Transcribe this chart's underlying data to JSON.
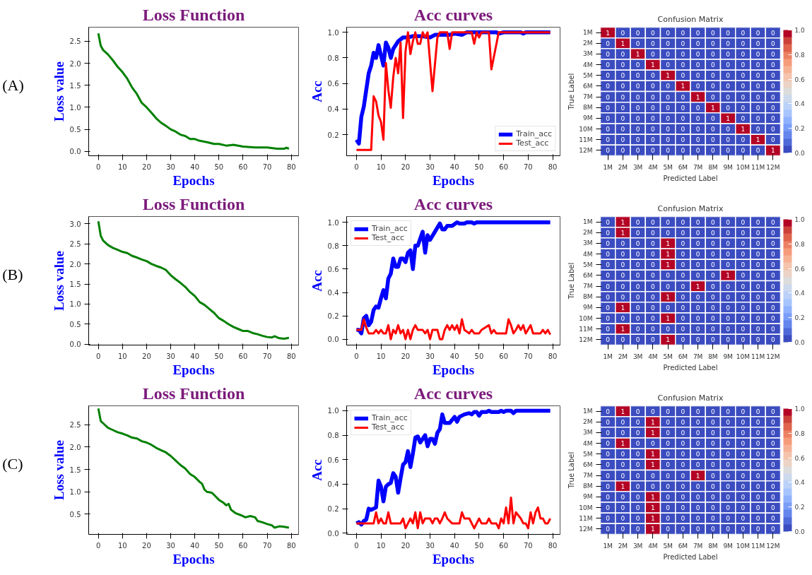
{
  "chart_data": [
    {
      "type": "line",
      "title": "Loss Function",
      "xlabel": "Epochs",
      "ylabel": "Loss value",
      "annotations": [
        "(A)"
      ],
      "xlim": [
        -4,
        83
      ],
      "ylim": [
        -0.1,
        2.82
      ],
      "xticks": [
        0,
        10,
        20,
        30,
        40,
        50,
        60,
        70,
        80
      ],
      "yticks": [
        {
          "value": 0,
          "label": "0.0"
        },
        {
          "value": 0.5,
          "label": "0.5"
        },
        {
          "value": 1,
          "label": "1.0"
        },
        {
          "value": 1.5,
          "label": "1.5"
        },
        {
          "value": 2,
          "label": "2.0"
        },
        {
          "value": 2.5,
          "label": "2.5"
        }
      ],
      "grid": false,
      "legend": false,
      "series": [
        {
          "color": "#008000",
          "x": [
            0,
            1,
            2,
            4,
            6,
            8,
            10,
            12,
            14,
            16,
            18,
            20,
            22,
            24,
            26,
            28,
            30,
            32,
            34,
            36,
            38,
            40,
            42,
            45,
            48,
            50,
            53,
            56,
            60,
            65,
            70,
            74,
            77,
            78,
            79
          ],
          "values": [
            2.68,
            2.4,
            2.3,
            2.2,
            2.07,
            1.92,
            1.8,
            1.65,
            1.45,
            1.3,
            1.1,
            1.0,
            0.88,
            0.75,
            0.65,
            0.58,
            0.5,
            0.45,
            0.38,
            0.35,
            0.28,
            0.28,
            0.24,
            0.21,
            0.17,
            0.17,
            0.13,
            0.15,
            0.11,
            0.09,
            0.09,
            0.06,
            0.06,
            0.08,
            0.06
          ]
        }
      ]
    },
    {
      "type": "line",
      "title": "Acc curves",
      "xlabel": "Epochs",
      "ylabel": "Acc",
      "xlim": [
        -4,
        83
      ],
      "ylim": [
        0.035,
        1.04
      ],
      "xticks": [
        0,
        10,
        20,
        30,
        40,
        50,
        60,
        70,
        80
      ],
      "yticks": [
        {
          "value": 0.2,
          "label": "0.2"
        },
        {
          "value": 0.4,
          "label": "0.4"
        },
        {
          "value": 0.6,
          "label": "0.6"
        },
        {
          "value": 0.8,
          "label": "0.8"
        },
        {
          "value": 1,
          "label": "1.0"
        }
      ],
      "grid": false,
      "legend": "bottom right",
      "series": [
        {
          "name": "Train_acc",
          "color": "#0000ff",
          "x": [
            0,
            1,
            2,
            3,
            4,
            5,
            6,
            7,
            8,
            9,
            10,
            11,
            12,
            13,
            14,
            15,
            17,
            19,
            21,
            23,
            27,
            30,
            32,
            35,
            38,
            40,
            43,
            45,
            57,
            58,
            60,
            67,
            68,
            69,
            79
          ],
          "values": [
            0.16,
            0.13,
            0.34,
            0.42,
            0.55,
            0.68,
            0.74,
            0.84,
            0.8,
            0.9,
            0.82,
            0.74,
            0.92,
            0.88,
            0.8,
            0.87,
            0.93,
            0.96,
            0.96,
            0.97,
            0.97,
            0.96,
            0.98,
            0.98,
            0.98,
            0.99,
            0.98,
            1.0,
            1.0,
            0.99,
            1.0,
            1.0,
            0.99,
            1.0,
            1.0
          ]
        },
        {
          "name": "Test_acc",
          "color": "#ff0000",
          "x": [
            0,
            6,
            7,
            8,
            9,
            10,
            11,
            12,
            13,
            14,
            15,
            16,
            17,
            18,
            19,
            20,
            21,
            22,
            23,
            24,
            25,
            26,
            27,
            28,
            29,
            31,
            33,
            34,
            37,
            38,
            39,
            47,
            48,
            49,
            50,
            51,
            54,
            55,
            58,
            79
          ],
          "values": [
            0.08,
            0.08,
            0.5,
            0.46,
            0.35,
            0.3,
            0.16,
            0.76,
            0.55,
            0.41,
            0.65,
            0.8,
            0.68,
            0.92,
            0.33,
            0.85,
            1.0,
            0.83,
            0.93,
            1.0,
            0.91,
            0.91,
            1.0,
            0.96,
            1.0,
            0.54,
            0.96,
            1.0,
            1.0,
            0.87,
            1.0,
            1.0,
            0.91,
            1.0,
            0.96,
            1.0,
            1.0,
            0.71,
            1.0,
            1.0
          ]
        }
      ]
    },
    {
      "type": "heatmap",
      "title": "Confusion Matrix",
      "xlabel": "Predicted Label",
      "ylabel": "True Label",
      "data_labels": true,
      "categories": [
        "1M",
        "2M",
        "3M",
        "4M",
        "5M",
        "6M",
        "7M",
        "8M",
        "9M",
        "10M",
        "11M",
        "12M"
      ],
      "y_categories": [
        "1M",
        "2M",
        "3M",
        "4M",
        "5M",
        "6M",
        "7M",
        "8M",
        "9M",
        "10M",
        "11M",
        "12M"
      ],
      "clim": [
        0,
        1
      ],
      "cticks": [
        {
          "value": 0,
          "label": "0.0"
        },
        {
          "value": 0.2,
          "label": "0.2"
        },
        {
          "value": 0.4,
          "label": "0.4"
        },
        {
          "value": 0.6,
          "label": "0.6"
        },
        {
          "value": 0.8,
          "label": "0.8"
        },
        {
          "value": 1,
          "label": "1.0"
        }
      ],
      "cells": [
        [
          1,
          0,
          0,
          0,
          0,
          0,
          0,
          0,
          0,
          0,
          0,
          0
        ],
        [
          0,
          1,
          0,
          0,
          0,
          0,
          0,
          0,
          0,
          0,
          0,
          0
        ],
        [
          0,
          0,
          1,
          0,
          0,
          0,
          0,
          0,
          0,
          0,
          0,
          0
        ],
        [
          0,
          0,
          0,
          1,
          0,
          0,
          0,
          0,
          0,
          0,
          0,
          0
        ],
        [
          0,
          0,
          0,
          0,
          1,
          0,
          0,
          0,
          0,
          0,
          0,
          0
        ],
        [
          0,
          0,
          0,
          0,
          0,
          1,
          0,
          0,
          0,
          0,
          0,
          0
        ],
        [
          0,
          0,
          0,
          0,
          0,
          0,
          1,
          0,
          0,
          0,
          0,
          0
        ],
        [
          0,
          0,
          0,
          0,
          0,
          0,
          0,
          1,
          0,
          0,
          0,
          0
        ],
        [
          0,
          0,
          0,
          0,
          0,
          0,
          0,
          0,
          1,
          0,
          0,
          0
        ],
        [
          0,
          0,
          0,
          0,
          0,
          0,
          0,
          0,
          0,
          1,
          0,
          0
        ],
        [
          0,
          0,
          0,
          0,
          0,
          0,
          0,
          0,
          0,
          0,
          1,
          0
        ],
        [
          0,
          0,
          0,
          0,
          0,
          0,
          0,
          0,
          0,
          0,
          0,
          1
        ]
      ]
    },
    {
      "type": "line",
      "title": "Loss Function",
      "xlabel": "Epochs",
      "ylabel": "Loss value",
      "annotations": [
        "(B)"
      ],
      "xlim": [
        -4,
        83
      ],
      "ylim": [
        -0.02,
        3.18
      ],
      "xticks": [
        0,
        10,
        20,
        30,
        40,
        50,
        60,
        70,
        80
      ],
      "yticks": [
        {
          "value": 0,
          "label": "0.0"
        },
        {
          "value": 0.5,
          "label": "0.5"
        },
        {
          "value": 1,
          "label": "1.0"
        },
        {
          "value": 1.5,
          "label": "1.5"
        },
        {
          "value": 2,
          "label": "2.0"
        },
        {
          "value": 2.5,
          "label": "2.5"
        },
        {
          "value": 3,
          "label": "3.0"
        }
      ],
      "grid": false,
      "legend": false,
      "series": [
        {
          "color": "#008000",
          "x": [
            0,
            1,
            2,
            4,
            6,
            8,
            10,
            12,
            14,
            16,
            18,
            20,
            22,
            24,
            26,
            28,
            30,
            32,
            34,
            36,
            38,
            40,
            42,
            44,
            46,
            48,
            50,
            52,
            54,
            56,
            58,
            60,
            62,
            64,
            66,
            68,
            70,
            72,
            73,
            75,
            77,
            79
          ],
          "values": [
            3.06,
            2.7,
            2.58,
            2.47,
            2.4,
            2.35,
            2.3,
            2.27,
            2.2,
            2.16,
            2.11,
            2.07,
            2.0,
            1.95,
            1.91,
            1.85,
            1.72,
            1.62,
            1.53,
            1.43,
            1.3,
            1.2,
            1.05,
            0.98,
            0.88,
            0.78,
            0.65,
            0.58,
            0.5,
            0.43,
            0.38,
            0.33,
            0.33,
            0.28,
            0.25,
            0.21,
            0.18,
            0.17,
            0.2,
            0.15,
            0.14,
            0.16
          ]
        }
      ]
    },
    {
      "type": "line",
      "title": "Acc curves",
      "xlabel": "Epochs",
      "ylabel": "Acc",
      "xlim": [
        -4,
        83
      ],
      "ylim": [
        -0.05,
        1.05
      ],
      "xticks": [
        0,
        10,
        20,
        30,
        40,
        50,
        60,
        70,
        80
      ],
      "yticks": [
        {
          "value": 0,
          "label": "0.0"
        },
        {
          "value": 0.2,
          "label": "0.2"
        },
        {
          "value": 0.4,
          "label": "0.4"
        },
        {
          "value": 0.6,
          "label": "0.6"
        },
        {
          "value": 0.8,
          "label": "0.8"
        },
        {
          "value": 1,
          "label": "1.0"
        }
      ],
      "grid": false,
      "legend": "top left",
      "series": [
        {
          "name": "Train_acc",
          "color": "#0000ff",
          "x": [
            0,
            1,
            2,
            3,
            4,
            5,
            6,
            7,
            8,
            9,
            10,
            11,
            12,
            13,
            14,
            15,
            16,
            17,
            18,
            19,
            20,
            21,
            22,
            23,
            24,
            25,
            27,
            28,
            29,
            30,
            32,
            34,
            35,
            36,
            37,
            39,
            41,
            42,
            44,
            45,
            47,
            48,
            49,
            79
          ],
          "values": [
            0.08,
            0.08,
            0.05,
            0.18,
            0.2,
            0.12,
            0.15,
            0.25,
            0.28,
            0.27,
            0.35,
            0.42,
            0.35,
            0.52,
            0.56,
            0.69,
            0.62,
            0.62,
            0.69,
            0.69,
            0.66,
            0.74,
            0.76,
            0.6,
            0.8,
            0.8,
            0.92,
            0.74,
            0.89,
            0.85,
            0.92,
            0.99,
            0.94,
            0.94,
            0.97,
            0.97,
            1.0,
            0.99,
            0.99,
            1.0,
            1.0,
            0.99,
            1.0,
            1.0
          ]
        },
        {
          "name": "Test_acc",
          "color": "#ff0000",
          "x": [
            0,
            2,
            3,
            4,
            5,
            7,
            8,
            9,
            10,
            11,
            12,
            13,
            14,
            15,
            16,
            17,
            18,
            19,
            20,
            21,
            22,
            23,
            24,
            25,
            27,
            28,
            29,
            30,
            31,
            33,
            34,
            35,
            36,
            37,
            38,
            39,
            40,
            41,
            42,
            43,
            44,
            46,
            47,
            48,
            50,
            51,
            54,
            55,
            56,
            57,
            61,
            62,
            63,
            64,
            65,
            66,
            67,
            68,
            69,
            71,
            72,
            75,
            76,
            77,
            78,
            79
          ],
          "values": [
            0.08,
            0.08,
            0.17,
            0.1,
            0.05,
            0.05,
            0.08,
            0.05,
            0.08,
            0.05,
            0.05,
            0.12,
            0.0,
            0.08,
            0.05,
            0.12,
            0.05,
            0.08,
            0.0,
            0.08,
            0.0,
            0.08,
            0.12,
            0.08,
            0.08,
            0.05,
            0.08,
            0.0,
            0.08,
            0.08,
            0.0,
            0.0,
            0.08,
            0.12,
            0.08,
            0.12,
            0.08,
            0.12,
            0.05,
            0.17,
            0.08,
            0.05,
            0.08,
            0.05,
            0.05,
            0.08,
            0.12,
            0.05,
            0.08,
            0.05,
            0.05,
            0.17,
            0.12,
            0.05,
            0.08,
            0.12,
            0.08,
            0.12,
            0.05,
            0.12,
            0.05,
            0.05,
            0.08,
            0.05,
            0.08,
            0.04
          ]
        }
      ]
    },
    {
      "type": "heatmap",
      "title": "Confusion Matrix",
      "xlabel": "Predicted Label",
      "ylabel": "True Label",
      "data_labels": true,
      "categories": [
        "1M",
        "2M",
        "3M",
        "4M",
        "5M",
        "6M",
        "7M",
        "8M",
        "9M",
        "10M",
        "11M",
        "12M"
      ],
      "y_categories": [
        "1M",
        "2M",
        "3M",
        "4M",
        "5M",
        "6M",
        "7M",
        "8M",
        "9M",
        "10M",
        "11M",
        "12M"
      ],
      "clim": [
        0,
        1
      ],
      "cticks": [
        {
          "value": 0,
          "label": "0.0"
        },
        {
          "value": 0.2,
          "label": "0.2"
        },
        {
          "value": 0.4,
          "label": "0.4"
        },
        {
          "value": 0.6,
          "label": "0.6"
        },
        {
          "value": 0.8,
          "label": "0.8"
        },
        {
          "value": 1,
          "label": "1.0"
        }
      ],
      "cells": [
        [
          0,
          1,
          0,
          0,
          0,
          0,
          0,
          0,
          0,
          0,
          0,
          0
        ],
        [
          0,
          1,
          0,
          0,
          0,
          0,
          0,
          0,
          0,
          0,
          0,
          0
        ],
        [
          0,
          0,
          0,
          0,
          1,
          0,
          0,
          0,
          0,
          0,
          0,
          0
        ],
        [
          0,
          0,
          0,
          0,
          1,
          0,
          0,
          0,
          0,
          0,
          0,
          0
        ],
        [
          0,
          0,
          0,
          0,
          1,
          0,
          0,
          0,
          0,
          0,
          0,
          0
        ],
        [
          0,
          0,
          0,
          0,
          0,
          0,
          0,
          0,
          1,
          0,
          0,
          0
        ],
        [
          0,
          0,
          0,
          0,
          0,
          0,
          1,
          0,
          0,
          0,
          0,
          0
        ],
        [
          0,
          0,
          0,
          0,
          1,
          0,
          0,
          0,
          0,
          0,
          0,
          0
        ],
        [
          0,
          1,
          0,
          0,
          0,
          0,
          0,
          0,
          0,
          0,
          0,
          0
        ],
        [
          0,
          0,
          0,
          0,
          1,
          0,
          0,
          0,
          0,
          0,
          0,
          0
        ],
        [
          0,
          1,
          0,
          0,
          0,
          0,
          0,
          0,
          0,
          0,
          0,
          0
        ],
        [
          0,
          0,
          0,
          0,
          1,
          0,
          0,
          0,
          0,
          0,
          0,
          0
        ]
      ]
    },
    {
      "type": "line",
      "title": "Loss Function",
      "xlabel": "Epochs",
      "ylabel": "Loss value",
      "annotations": [
        "(C)"
      ],
      "xlim": [
        -4,
        83
      ],
      "ylim": [
        0.05,
        2.92
      ],
      "xticks": [
        0,
        10,
        20,
        30,
        40,
        50,
        60,
        70,
        80
      ],
      "yticks": [
        {
          "value": 0.5,
          "label": "0.5"
        },
        {
          "value": 1,
          "label": "1.0"
        },
        {
          "value": 1.5,
          "label": "1.5"
        },
        {
          "value": 2,
          "label": "2.0"
        },
        {
          "value": 2.5,
          "label": "2.5"
        }
      ],
      "grid": false,
      "legend": false,
      "series": [
        {
          "color": "#008000",
          "x": [
            0,
            1,
            2,
            4,
            6,
            8,
            10,
            12,
            14,
            16,
            18,
            20,
            22,
            24,
            26,
            28,
            30,
            32,
            34,
            36,
            38,
            40,
            42,
            43,
            44,
            45,
            47,
            48,
            50,
            52,
            53,
            54,
            55,
            57,
            59,
            61,
            63,
            65,
            66,
            68,
            70,
            72,
            73,
            75,
            77,
            79
          ],
          "values": [
            2.86,
            2.58,
            2.53,
            2.43,
            2.38,
            2.33,
            2.3,
            2.26,
            2.21,
            2.19,
            2.13,
            2.1,
            2.05,
            1.98,
            1.93,
            1.88,
            1.8,
            1.7,
            1.6,
            1.52,
            1.4,
            1.33,
            1.22,
            1.18,
            1.05,
            1.0,
            0.98,
            0.93,
            0.82,
            0.75,
            0.7,
            0.73,
            0.6,
            0.52,
            0.48,
            0.43,
            0.46,
            0.43,
            0.35,
            0.32,
            0.28,
            0.25,
            0.2,
            0.23,
            0.22,
            0.2
          ]
        }
      ]
    },
    {
      "type": "line",
      "title": "Acc curves",
      "xlabel": "Epochs",
      "ylabel": "Acc",
      "xlim": [
        -4,
        83
      ],
      "ylim": [
        -0.01,
        1.04
      ],
      "xticks": [
        0,
        10,
        20,
        30,
        40,
        50,
        60,
        70,
        80
      ],
      "yticks": [
        {
          "value": 0,
          "label": "0.0"
        },
        {
          "value": 0.2,
          "label": "0.2"
        },
        {
          "value": 0.4,
          "label": "0.4"
        },
        {
          "value": 0.6,
          "label": "0.6"
        },
        {
          "value": 0.8,
          "label": "0.8"
        },
        {
          "value": 1,
          "label": "1.0"
        }
      ],
      "grid": false,
      "legend": "top left",
      "series": [
        {
          "name": "Train_acc",
          "color": "#0000ff",
          "x": [
            0,
            1,
            2,
            3,
            4,
            5,
            6,
            7,
            8,
            9,
            10,
            11,
            12,
            13,
            14,
            15,
            16,
            17,
            18,
            19,
            20,
            21,
            22,
            23,
            24,
            25,
            26,
            27,
            28,
            29,
            30,
            31,
            32,
            33,
            34,
            35,
            36,
            38,
            40,
            41,
            42,
            44,
            46,
            47,
            48,
            49,
            50,
            51,
            53,
            54,
            55,
            58,
            59,
            60,
            61,
            63,
            64,
            65,
            79
          ],
          "values": [
            0.08,
            0.09,
            0.07,
            0.1,
            0.11,
            0.2,
            0.19,
            0.2,
            0.21,
            0.43,
            0.38,
            0.26,
            0.38,
            0.4,
            0.41,
            0.49,
            0.46,
            0.33,
            0.45,
            0.56,
            0.58,
            0.67,
            0.54,
            0.65,
            0.78,
            0.79,
            0.74,
            0.77,
            0.8,
            0.71,
            0.77,
            0.77,
            0.73,
            0.82,
            0.85,
            0.97,
            0.9,
            0.9,
            0.95,
            0.91,
            0.95,
            0.97,
            0.98,
            0.97,
            0.99,
            0.99,
            0.96,
            0.99,
            0.99,
            1.0,
            0.99,
            0.99,
            1.0,
            0.99,
            1.0,
            1.0,
            0.98,
            1.0,
            1.0
          ]
        },
        {
          "name": "Test_acc",
          "color": "#ff0000",
          "x": [
            0,
            7,
            8,
            9,
            10,
            11,
            12,
            13,
            14,
            18,
            19,
            20,
            21,
            22,
            23,
            24,
            25,
            26,
            27,
            28,
            30,
            31,
            32,
            33,
            34,
            35,
            36,
            37,
            39,
            42,
            43,
            44,
            46,
            48,
            49,
            50,
            51,
            53,
            54,
            55,
            57,
            58,
            59,
            60,
            61,
            62,
            63,
            64,
            65,
            67,
            68,
            69,
            70,
            71,
            72,
            73,
            74,
            75,
            76,
            77,
            78,
            79
          ],
          "values": [
            0.08,
            0.08,
            0.17,
            0.08,
            0.12,
            0.08,
            0.08,
            0.17,
            0.08,
            0.08,
            0.12,
            0.04,
            0.08,
            0.12,
            0.08,
            0.17,
            0.04,
            0.17,
            0.08,
            0.12,
            0.12,
            0.08,
            0.12,
            0.12,
            0.08,
            0.12,
            0.17,
            0.12,
            0.08,
            0.08,
            0.17,
            0.12,
            0.12,
            0.04,
            0.08,
            0.12,
            0.08,
            0.08,
            0.12,
            0.08,
            0.08,
            0.04,
            0.12,
            0.08,
            0.21,
            0.08,
            0.29,
            0.08,
            0.17,
            0.12,
            0.08,
            0.08,
            0.04,
            0.17,
            0.08,
            0.17,
            0.21,
            0.12,
            0.12,
            0.08,
            0.08,
            0.12
          ]
        }
      ]
    },
    {
      "type": "heatmap",
      "title": "Confusion Matrix",
      "xlabel": "Predicted Label",
      "ylabel": "True Label",
      "data_labels": true,
      "categories": [
        "1M",
        "2M",
        "3M",
        "4M",
        "5M",
        "6M",
        "7M",
        "8M",
        "9M",
        "10M",
        "11M",
        "12M"
      ],
      "y_categories": [
        "1M",
        "2M",
        "3M",
        "4M",
        "5M",
        "6M",
        "7M",
        "8M",
        "9M",
        "10M",
        "11M",
        "12M"
      ],
      "clim": [
        0,
        1
      ],
      "cticks": [
        {
          "value": 0,
          "label": "0.0"
        },
        {
          "value": 0.2,
          "label": "0.2"
        },
        {
          "value": 0.4,
          "label": "0.4"
        },
        {
          "value": 0.6,
          "label": "0.6"
        },
        {
          "value": 0.8,
          "label": "0.8"
        },
        {
          "value": 1,
          "label": "1.0"
        }
      ],
      "cells": [
        [
          0,
          1,
          0,
          0,
          0,
          0,
          0,
          0,
          0,
          0,
          0,
          0
        ],
        [
          0,
          0,
          0,
          1,
          0,
          0,
          0,
          0,
          0,
          0,
          0,
          0
        ],
        [
          0,
          0,
          0,
          1,
          0,
          0,
          0,
          0,
          0,
          0,
          0,
          0
        ],
        [
          0,
          1,
          0,
          0,
          0,
          0,
          0,
          0,
          0,
          0,
          0,
          0
        ],
        [
          0,
          0,
          0,
          1,
          0,
          0,
          0,
          0,
          0,
          0,
          0,
          0
        ],
        [
          0,
          0,
          0,
          1,
          0,
          0,
          0,
          0,
          0,
          0,
          0,
          0
        ],
        [
          0,
          0,
          0,
          0,
          0,
          0,
          1,
          0,
          0,
          0,
          0,
          0
        ],
        [
          0,
          1,
          0,
          0,
          0,
          0,
          0,
          0,
          0,
          0,
          0,
          0
        ],
        [
          0,
          0,
          0,
          1,
          0,
          0,
          0,
          0,
          0,
          0,
          0,
          0
        ],
        [
          0,
          0,
          0,
          1,
          0,
          0,
          0,
          0,
          0,
          0,
          0,
          0
        ],
        [
          0,
          0,
          0,
          1,
          0,
          0,
          0,
          0,
          0,
          0,
          0,
          0
        ],
        [
          0,
          0,
          0,
          1,
          0,
          0,
          0,
          0,
          0,
          0,
          0,
          0
        ]
      ]
    }
  ]
}
